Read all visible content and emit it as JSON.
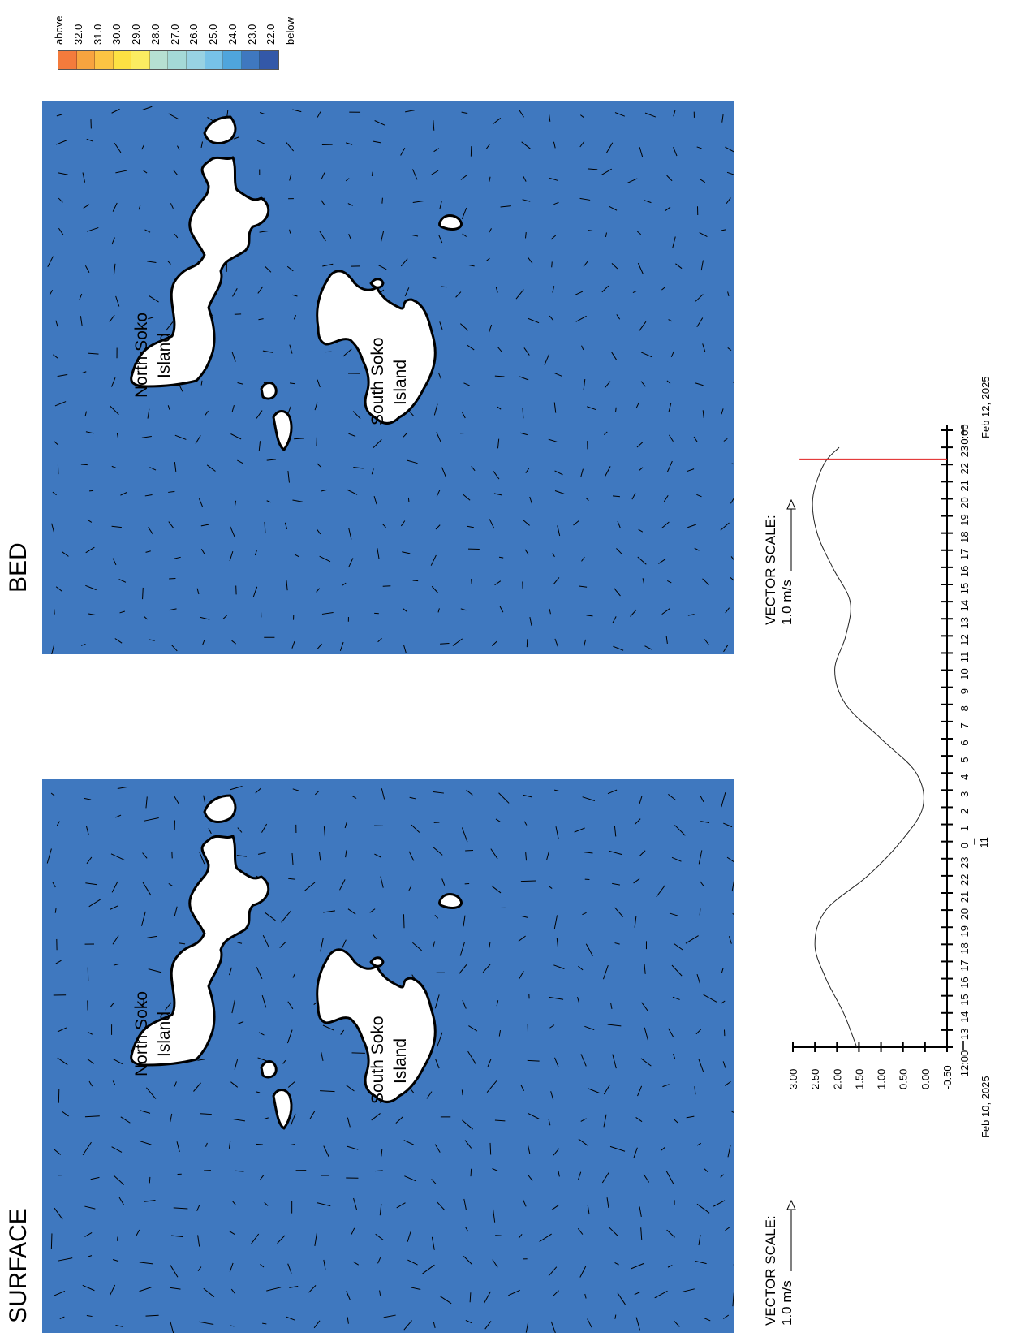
{
  "panels": {
    "surface": {
      "title": "SURFACE"
    },
    "bed": {
      "title": "BED"
    }
  },
  "islands": {
    "north": {
      "line1": "North Soko",
      "line2": "Island"
    },
    "south": {
      "line1": "South Soko",
      "line2": "Island"
    }
  },
  "vector_scale": {
    "title": "VECTOR SCALE:",
    "value": "1.0 m/s"
  },
  "legend": {
    "labels": [
      "above",
      "32.0",
      "31.0",
      "30.0",
      "29.0",
      "28.0",
      "27.0",
      "26.0",
      "25.0",
      "24.0",
      "23.0",
      "22.0",
      "below"
    ],
    "colors": [
      "#f47b3c",
      "#f7a43f",
      "#fbc443",
      "#fde143",
      "#fbed61",
      "#b6e0d2",
      "#a4d9d7",
      "#98d2e3",
      "#77c2e8",
      "#4fa5dc",
      "#3f78bf",
      "#3358a8"
    ]
  },
  "colors": {
    "water": "#3f78bf",
    "land": "#ffffff",
    "marker": "#e02020"
  },
  "chart_data": {
    "type": "line",
    "y_ticks": [
      "3.00",
      "2.50",
      "2.00",
      "1.50",
      "1.00",
      "0.50",
      "0.00",
      "-0.50"
    ],
    "ylim": [
      -0.5,
      3.0
    ],
    "x_ticks": [
      "12:00",
      "13",
      "14",
      "15",
      "16",
      "17",
      "18",
      "19",
      "20",
      "21",
      "22",
      "23",
      "0",
      "1",
      "2",
      "3",
      "4",
      "5",
      "6",
      "7",
      "8",
      "9",
      "10",
      "11",
      "12",
      "13",
      "14",
      "15",
      "16",
      "17",
      "18",
      "19",
      "20",
      "21",
      "22",
      "23",
      "0:00"
    ],
    "x_start_label": "Feb 10, 2025",
    "x_mid_label": "11",
    "x_end_label": "Feb 12, 2025",
    "x_hours": [
      0,
      2,
      4,
      6,
      8,
      10,
      12,
      14,
      16,
      18,
      20,
      22,
      24,
      26,
      28,
      30,
      32,
      34,
      35
    ],
    "values": [
      1.55,
      1.85,
      2.25,
      2.5,
      2.25,
      1.3,
      0.55,
      0.05,
      0.2,
      1.0,
      1.8,
      2.05,
      1.8,
      1.7,
      2.1,
      2.45,
      2.55,
      2.3,
      1.95
    ],
    "marker_hour": 34.3
  }
}
